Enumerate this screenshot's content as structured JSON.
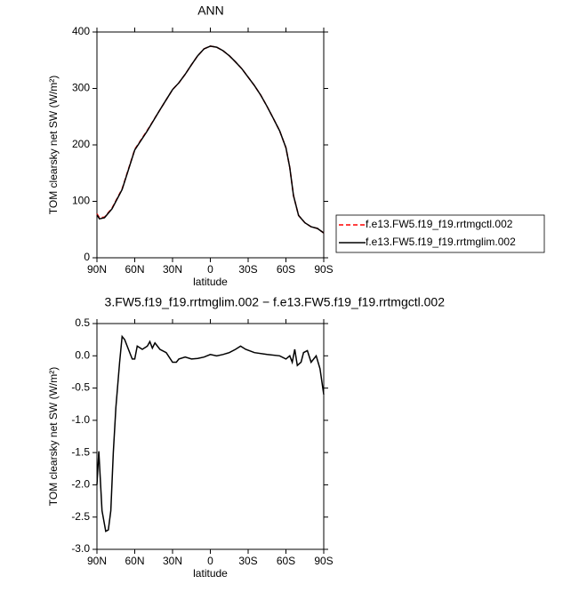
{
  "chart_data": [
    {
      "type": "line",
      "title": "ANN",
      "xlabel": "latitude",
      "ylabel": "TOM clearsky net SW (W/m²)",
      "x": [
        90,
        88,
        84,
        78,
        70,
        60,
        50,
        40,
        35,
        30,
        25,
        20,
        15,
        10,
        5,
        0,
        -5,
        -10,
        -15,
        -20,
        -25,
        -30,
        -35,
        -40,
        -45,
        -50,
        -55,
        -60,
        -63,
        -66,
        -70,
        -75,
        -80,
        -85,
        -90
      ],
      "series": [
        {
          "name": "f.e13.FW5.f19_f19.rrtmgctl.002",
          "color": "#ff0000",
          "linestyle": "dashed",
          "values": [
            78,
            71,
            72,
            88,
            122,
            192,
            226,
            262,
            280,
            298,
            310,
            325,
            342,
            358,
            370,
            375,
            373,
            367,
            358,
            347,
            335,
            320,
            305,
            288,
            268,
            247,
            225,
            195,
            160,
            110,
            75,
            62,
            55,
            52,
            44
          ]
        },
        {
          "name": "f.e13.FW5.f19_f19.rrtmglim.002",
          "color": "#000000",
          "linestyle": "solid",
          "values": [
            76,
            69,
            71,
            87,
            121,
            191,
            225,
            262,
            280,
            298,
            310,
            325,
            342,
            358,
            370,
            375,
            373,
            367,
            358,
            347,
            335,
            320,
            305,
            288,
            268,
            247,
            225,
            195,
            160,
            110,
            75,
            62,
            55,
            52,
            44
          ]
        }
      ],
      "xlim": [
        90,
        -90
      ],
      "xticks": [
        {
          "value": 90,
          "label": "90N"
        },
        {
          "value": 60,
          "label": "60N"
        },
        {
          "value": 30,
          "label": "30N"
        },
        0,
        {
          "value": -30,
          "label": "30S"
        },
        {
          "value": -60,
          "label": "60S"
        },
        {
          "value": -90,
          "label": "90S"
        }
      ],
      "ylim": [
        0,
        400
      ],
      "yticks": [
        0,
        100,
        200,
        300,
        400
      ],
      "legend": "right"
    },
    {
      "type": "line",
      "title": "3.FW5.f19_f19.rrtmglim.002 − f.e13.FW5.f19_f19.rrtmgctl.002",
      "xlabel": "latitude",
      "ylabel": "TOM clearsky net SW (W/m²)",
      "x": [
        90,
        88.5,
        86,
        83,
        81,
        79,
        77,
        75,
        72,
        70,
        68,
        65,
        62,
        60,
        58,
        54,
        50,
        48,
        46,
        44,
        40,
        35,
        30,
        27,
        25,
        20,
        15,
        10,
        5,
        0,
        -5,
        -10,
        -15,
        -20,
        -24,
        -28,
        -35,
        -45,
        -55,
        -60,
        -63,
        -65,
        -67,
        -69,
        -72,
        -74,
        -77,
        -80,
        -84,
        -87,
        -90
      ],
      "series": [
        {
          "color": "#000000",
          "linestyle": "solid",
          "values": [
            -2.0,
            -1.48,
            -2.4,
            -2.72,
            -2.7,
            -2.4,
            -1.5,
            -0.8,
            -0.1,
            0.3,
            0.25,
            0.1,
            -0.05,
            -0.05,
            0.15,
            0.1,
            0.15,
            0.22,
            0.12,
            0.2,
            0.1,
            0.05,
            -0.1,
            -0.1,
            -0.05,
            -0.02,
            -0.05,
            -0.04,
            -0.02,
            0.02,
            0.0,
            0.02,
            0.05,
            0.1,
            0.15,
            0.1,
            0.05,
            0.02,
            0.0,
            -0.05,
            0.0,
            -0.1,
            0.1,
            -0.15,
            -0.1,
            0.05,
            0.08,
            -0.1,
            0.0,
            -0.2,
            -0.6
          ]
        }
      ],
      "xlim": [
        90,
        -90
      ],
      "xticks": [
        {
          "value": 90,
          "label": "90N"
        },
        {
          "value": 60,
          "label": "60N"
        },
        {
          "value": 30,
          "label": "30N"
        },
        0,
        {
          "value": -30,
          "label": "30S"
        },
        {
          "value": -60,
          "label": "60S"
        },
        {
          "value": -90,
          "label": "90S"
        }
      ],
      "ylim": [
        -3.0,
        0.5
      ],
      "yticks": [
        {
          "value": -3.0,
          "label": "-3.0"
        },
        -2.5,
        {
          "value": -2.0,
          "label": "-2.0"
        },
        -1.5,
        {
          "value": -1.0,
          "label": "-1.0"
        },
        -0.5,
        {
          "value": 0.0,
          "label": "0.0"
        },
        0.5
      ]
    }
  ]
}
